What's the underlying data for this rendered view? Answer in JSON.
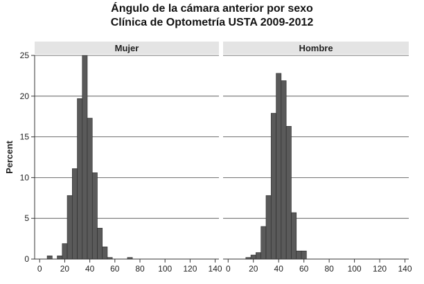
{
  "chart_data": {
    "type": "bar",
    "title_lines": [
      "Ángulo de la cámara anterior por sexo",
      "Clínica de Optometría USTA 2009-2012"
    ],
    "ylabel": "Percent",
    "xlabel": "",
    "ylim": [
      0,
      25
    ],
    "y_ticks": [
      0,
      5,
      10,
      15,
      20,
      25
    ],
    "x_ticks": [
      0,
      20,
      40,
      60,
      80,
      100,
      120,
      140
    ],
    "xlim": [
      -4,
      143
    ],
    "bin_width": 4,
    "grid": true,
    "bar_color": "#5a5a5a",
    "panel_header_color": "#e4e4e4",
    "panels": [
      {
        "name": "Mujer",
        "bins": [
          {
            "x": 6,
            "value": 0.4
          },
          {
            "x": 14,
            "value": 0.4
          },
          {
            "x": 18,
            "value": 1.9
          },
          {
            "x": 22,
            "value": 7.8
          },
          {
            "x": 26,
            "value": 11.1
          },
          {
            "x": 30,
            "value": 19.7
          },
          {
            "x": 34,
            "value": 25.0
          },
          {
            "x": 38,
            "value": 17.3
          },
          {
            "x": 42,
            "value": 10.6
          },
          {
            "x": 46,
            "value": 3.8
          },
          {
            "x": 50,
            "value": 1.5
          },
          {
            "x": 54,
            "value": 0.2
          },
          {
            "x": 70,
            "value": 0.2
          }
        ]
      },
      {
        "name": "Hombre",
        "bins": [
          {
            "x": 14,
            "value": 0.2
          },
          {
            "x": 18,
            "value": 0.5
          },
          {
            "x": 22,
            "value": 0.8
          },
          {
            "x": 26,
            "value": 4.0
          },
          {
            "x": 30,
            "value": 7.8
          },
          {
            "x": 34,
            "value": 17.9
          },
          {
            "x": 38,
            "value": 22.8
          },
          {
            "x": 42,
            "value": 21.9
          },
          {
            "x": 46,
            "value": 16.3
          },
          {
            "x": 50,
            "value": 5.7
          },
          {
            "x": 54,
            "value": 1.0
          },
          {
            "x": 58,
            "value": 1.0
          }
        ]
      }
    ]
  }
}
